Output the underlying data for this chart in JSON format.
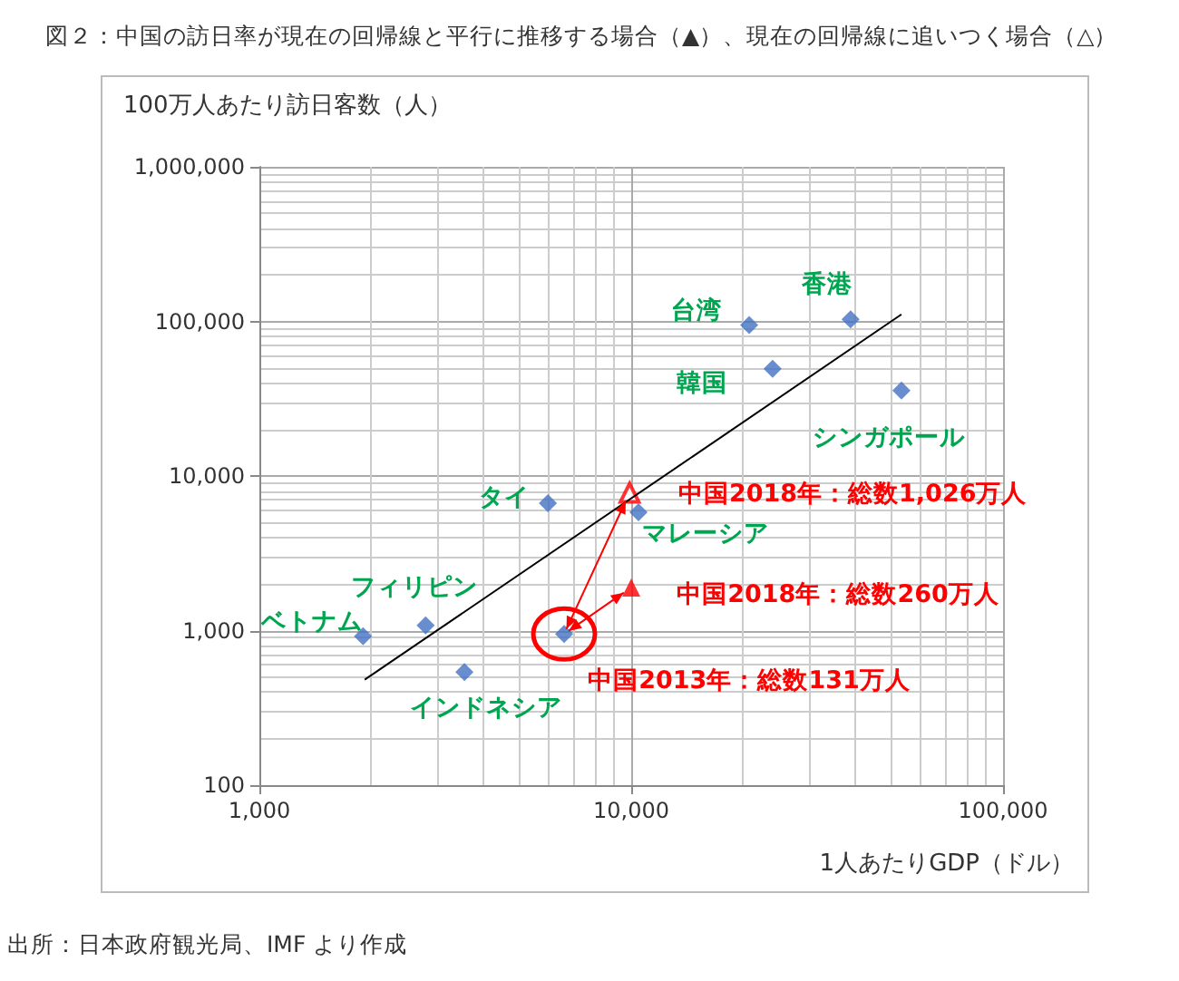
{
  "chart_data": {
    "type": "scatter",
    "title": "図２：中国の訪日率が現在の回帰線と平行に推移する場合（▲）、現在の回帰線に追いつく場合（△）",
    "xlabel": "1人あたりGDP（ドル）",
    "ylabel": "100万人あたり訪日客数（人）",
    "log": "xy",
    "grid": true,
    "xlim": [
      1000,
      100000
    ],
    "xticks": [
      {
        "value": 1000,
        "label": "1,000"
      },
      {
        "value": 10000,
        "label": "10,000"
      },
      {
        "value": 100000,
        "label": "100,000"
      }
    ],
    "ylim": [
      100,
      1000000
    ],
    "yticks": [
      {
        "value": 100,
        "label": "100"
      },
      {
        "value": 1000,
        "label": "1,000"
      },
      {
        "value": 10000,
        "label": "10,000"
      },
      {
        "value": 100000,
        "label": "100,000"
      },
      {
        "value": 1000000,
        "label": "1,000,000"
      }
    ],
    "series": [
      {
        "marker": "diamond",
        "color": "#4472c4",
        "x": [
          1900,
          2800,
          3560,
          5970,
          10460,
          20760,
          24000,
          38900,
          53300,
          6600
        ],
        "values": [
          920,
          1080,
          540,
          6660,
          5820,
          94700,
          49400,
          103000,
          35700,
          950
        ]
      },
      {
        "marker": "triangle",
        "color": "#ff0000",
        "x": [
          10000
        ],
        "values": [
          1900
        ]
      },
      {
        "marker": "triangle",
        "color": "#ff0000",
        "x": [
          9900
        ],
        "values": [
          7800
        ]
      },
      {
        "type": "line",
        "marker": "none",
        "color": "#000000",
        "x": [
          1920,
          53300
        ],
        "values": [
          481,
          111000
        ]
      }
    ],
    "annotations": [
      {
        "text": "ベトナム",
        "x": 1900,
        "y": 920
      },
      {
        "text": "フィリピン",
        "x": 2800,
        "y": 1080
      },
      {
        "text": "インドネシア",
        "x": 3560,
        "y": 540
      },
      {
        "text": "タイ",
        "x": 5970,
        "y": 6660
      },
      {
        "text": "マレーシア",
        "x": 10460,
        "y": 5820
      },
      {
        "text": "台湾",
        "x": 20760,
        "y": 94700
      },
      {
        "text": "韓国",
        "x": 24000,
        "y": 49400
      },
      {
        "text": "香港",
        "x": 38900,
        "y": 103000
      },
      {
        "text": "シンガポール",
        "x": 53300,
        "y": 35700
      },
      {
        "text": "中国2013年：総数131万人",
        "x": 6600,
        "y": 950
      },
      {
        "text": "中国2018年：総数1,026万人",
        "x": 9900,
        "y": 7800
      },
      {
        "text": "中国2018年：総数260万人",
        "x": 10000,
        "y": 1900
      },
      "出所：日本政府観光局、IMF より作成"
    ]
  }
}
